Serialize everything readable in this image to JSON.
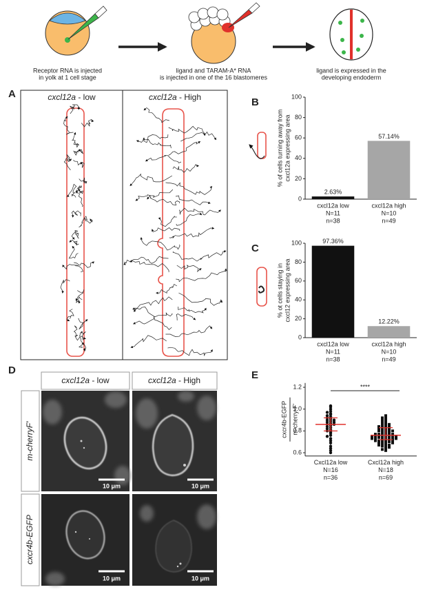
{
  "schematic": {
    "steps": [
      {
        "caption": [
          "Receptor RNA is injected",
          "in yolk at 1 cell stage"
        ]
      },
      {
        "caption": [
          "ligand and TARAM-A* RNA",
          "is injected in one of the 16 blastomeres"
        ]
      },
      {
        "caption": [
          "ligand is expressed in the",
          "developing endoderm"
        ]
      }
    ]
  },
  "panel_a": {
    "label": "A",
    "columns": [
      {
        "gene": "cxcl12a",
        "condition": " - low"
      },
      {
        "gene": "cxcl12a",
        "condition": " - High"
      }
    ]
  },
  "chart_data": [
    {
      "type": "bar",
      "label": "B",
      "ylabel": [
        "% of cells turning away from",
        "cxcl12a expressing area"
      ],
      "categories": [
        "cxcl12a low",
        "cxcl12a high"
      ],
      "category_notes": [
        [
          "N=11",
          "n=38"
        ],
        [
          "N=10",
          "n=49"
        ]
      ],
      "values": [
        2.63,
        57.14
      ],
      "value_labels": [
        "2.63%",
        "57.14%"
      ],
      "colors": [
        "#111111",
        "#a6a6a6"
      ],
      "label_colors": [
        "#111111",
        "#a6a6a6"
      ],
      "ylim": [
        0,
        100
      ],
      "yticks": [
        0,
        20,
        40,
        60,
        80,
        100
      ]
    },
    {
      "type": "bar",
      "label": "C",
      "ylabel": [
        "% ot cells staying in",
        "cxcl12 expressing area"
      ],
      "categories": [
        "cxcl12a low",
        "cxcl12a high"
      ],
      "category_notes": [
        [
          "N=11",
          "n=38"
        ],
        [
          "N=10",
          "n=49"
        ]
      ],
      "values": [
        97.36,
        12.22
      ],
      "value_labels": [
        "97.36%",
        "12.22%"
      ],
      "colors": [
        "#111111",
        "#a6a6a6"
      ],
      "label_colors": [
        "#111111",
        "#a6a6a6"
      ],
      "ylim": [
        0,
        100
      ],
      "yticks": [
        0,
        20,
        40,
        60,
        80,
        100
      ]
    },
    {
      "type": "scatter",
      "label": "E",
      "ylabel_numerator": "cxcr4b-EGFP",
      "ylabel_denominator": "m-cherry-F'",
      "categories": [
        "Cxcl12a low",
        "Cxcl12a high"
      ],
      "category_notes": [
        [
          "N=16",
          "n=36"
        ],
        [
          "N=18",
          "n=69"
        ]
      ],
      "marker_color": "#111111",
      "summary_color": "#e0312b",
      "annotation": "****",
      "ylim": [
        0.57,
        1.24
      ],
      "yticks": [
        0.6,
        0.8,
        {
          "value": 1,
          "label": "1.0"
        },
        1.2
      ],
      "groups": [
        {
          "marker": "circle",
          "center": 0.86,
          "lower": 0.8,
          "upper": 0.92,
          "values": [
            1.03,
            1.02,
            1.0,
            0.98,
            0.97,
            0.96,
            0.95,
            0.94,
            0.93,
            0.92,
            0.91,
            0.9,
            0.9,
            0.89,
            0.88,
            0.88,
            0.87,
            0.86,
            0.86,
            0.85,
            0.84,
            0.83,
            0.82,
            0.81,
            0.8,
            0.79,
            0.78,
            0.76,
            0.75,
            0.73,
            0.71,
            0.69,
            0.66,
            0.64,
            0.62,
            0.6
          ]
        },
        {
          "marker": "square",
          "center": 0.76,
          "lower": 0.72,
          "upper": 0.83,
          "values": [
            0.94,
            0.93,
            0.92,
            0.91,
            0.9,
            0.89,
            0.88,
            0.87,
            0.87,
            0.86,
            0.85,
            0.85,
            0.84,
            0.84,
            0.83,
            0.83,
            0.82,
            0.82,
            0.81,
            0.81,
            0.8,
            0.8,
            0.8,
            0.79,
            0.79,
            0.79,
            0.78,
            0.78,
            0.78,
            0.77,
            0.77,
            0.77,
            0.76,
            0.76,
            0.76,
            0.76,
            0.75,
            0.75,
            0.75,
            0.75,
            0.74,
            0.74,
            0.74,
            0.74,
            0.73,
            0.73,
            0.73,
            0.73,
            0.72,
            0.72,
            0.72,
            0.71,
            0.71,
            0.71,
            0.7,
            0.7,
            0.7,
            0.69,
            0.69,
            0.68,
            0.68,
            0.67,
            0.67,
            0.66,
            0.66,
            0.65,
            0.64,
            0.63,
            0.62
          ]
        }
      ]
    }
  ],
  "panel_d": {
    "label": "D",
    "columns": [
      {
        "gene": "cxcl12a",
        "condition": " - low"
      },
      {
        "gene": "cxcl12a",
        "condition": " - High"
      }
    ],
    "rows": [
      "m-cherryF'",
      "cxcr4b-EGFP"
    ],
    "scale_bar": "10 μm"
  }
}
